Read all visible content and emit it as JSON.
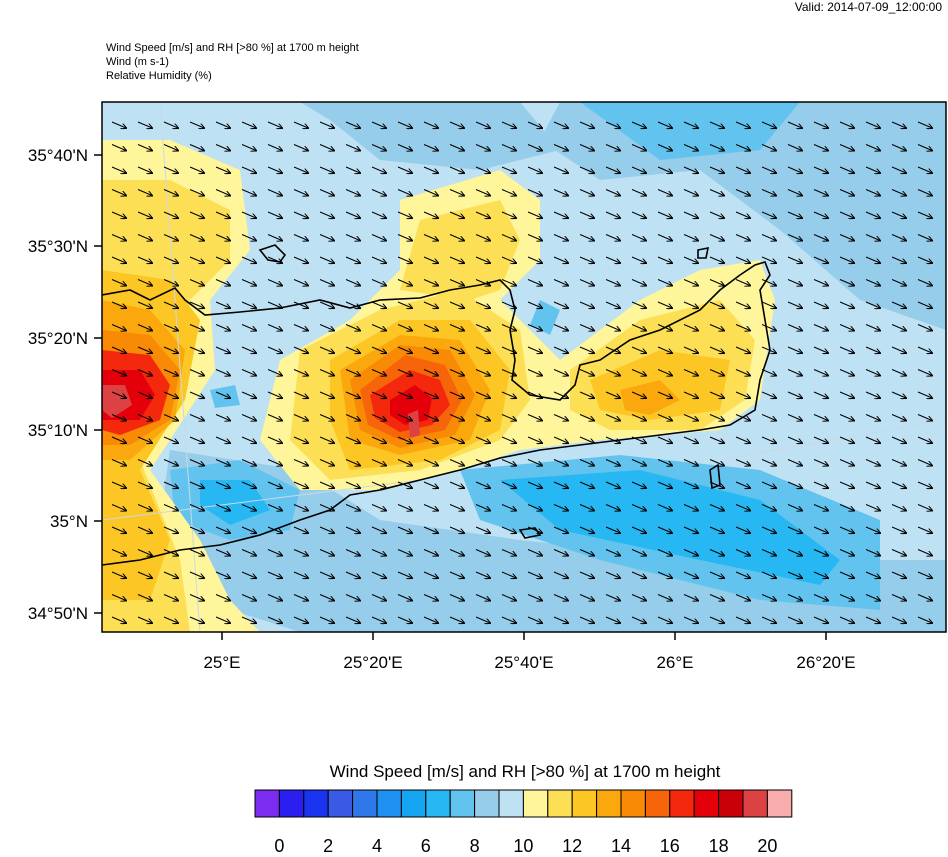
{
  "header": {
    "valid": "Valid: 2014-07-09_12:00:00",
    "line1": "Wind Speed [m/s] and RH [>80 %] at 1700 m height",
    "line2": "Wind   (m s-1)",
    "line3": "Relative Humidity   (%)"
  },
  "axes": {
    "lat_labels": [
      "35°40'N",
      "35°30'N",
      "35°20'N",
      "35°10'N",
      "35°N",
      "34°50'N"
    ],
    "lon_labels": [
      "25°E",
      "25°20'E",
      "25°40'E",
      "26°E",
      "26°20'E"
    ]
  },
  "colorbar": {
    "title": "Wind Speed [m/s] and RH [>80 %] at 1700 m height",
    "labels": [
      "0",
      "2",
      "4",
      "6",
      "8",
      "10",
      "12",
      "14",
      "16",
      "18",
      "20"
    ],
    "colors": [
      "#7b2cf0",
      "#2a1ff0",
      "#1a33ef",
      "#3a5ae6",
      "#2f78ea",
      "#1f91f0",
      "#16a5f3",
      "#27b8f3",
      "#63c3ef",
      "#96cdea",
      "#bfe1f4",
      "#fff59a",
      "#fcdf55",
      "#fcc724",
      "#fba80f",
      "#f98a05",
      "#f7650a",
      "#f4280d",
      "#e3000b",
      "#c90007",
      "#dc4244",
      "#f8acac"
    ]
  },
  "wind": {
    "direction_glyph": "southeast-arrow"
  }
}
